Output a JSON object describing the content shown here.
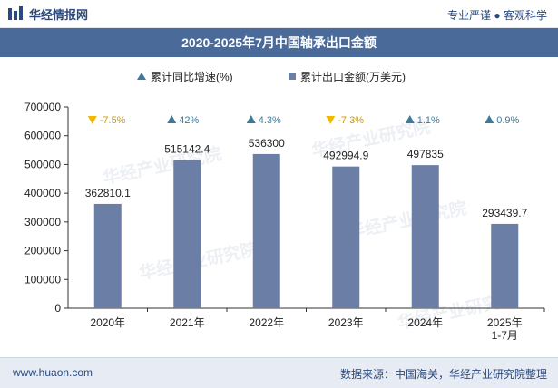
{
  "header": {
    "brand": "华经情报网",
    "tagline": "专业严谨 ● 客观科学"
  },
  "footer": {
    "website": "www.huaon.com",
    "source": "数据来源：中国海关，华经产业研究院整理"
  },
  "watermark": "华经产业研究院",
  "colors": {
    "bar": "#6b7fa6",
    "up": "#3d7a99",
    "down": "#f2b800",
    "title_bg": "#4a6a9a",
    "brand": "#2a4a7f"
  },
  "chart_data": {
    "type": "bar",
    "title": "2020-2025年7月中国轴承出口金额",
    "categories": [
      "2020年",
      "2021年",
      "2022年",
      "2023年",
      "2024年",
      "2025年\n1-7月"
    ],
    "series": [
      {
        "name": "累计出口金额(万美元)",
        "values": [
          362810.1,
          515142.4,
          536300,
          492994.9,
          497835,
          293439.7
        ],
        "labels": [
          "362810.1",
          "515142.4",
          "536300",
          "492994.9",
          "497835",
          "293439.7"
        ]
      },
      {
        "name": "累计同比增速(%)",
        "values": [
          -7.5,
          42,
          4.3,
          -7.3,
          1.1,
          0.9
        ],
        "labels": [
          "-7.5%",
          "42%",
          "4.3%",
          "-7.3%",
          "1.1%",
          "0.9%"
        ]
      }
    ],
    "legend": [
      "累计同比增速(%)",
      "累计出口金额(万美元)"
    ],
    "legend_position": "top-center",
    "ylim": [
      0,
      700000
    ],
    "yticks": [
      "0",
      "100000",
      "200000",
      "300000",
      "400000",
      "500000",
      "600000",
      "700000"
    ],
    "grid": false
  }
}
